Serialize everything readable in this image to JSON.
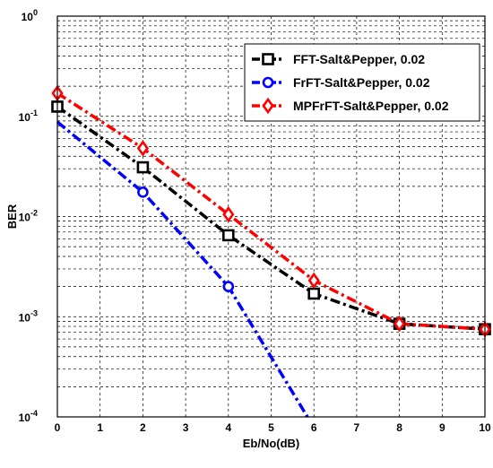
{
  "chart_data": {
    "type": "line",
    "title": "",
    "xlabel": "Eb/No(dB)",
    "ylabel": "BER",
    "xlim": [
      0,
      10
    ],
    "ylim": [
      0.0001,
      1
    ],
    "yscale": "log",
    "grid": true,
    "legend_position": "top-right",
    "x_ticks": [
      "0",
      "1",
      "2",
      "3",
      "4",
      "5",
      "6",
      "7",
      "8",
      "9",
      "10"
    ],
    "y_ticks": [
      {
        "base": "10",
        "exp": "-4"
      },
      {
        "base": "10",
        "exp": "-3"
      },
      {
        "base": "10",
        "exp": "-2"
      },
      {
        "base": "10",
        "exp": "-1"
      },
      {
        "base": "10",
        "exp": "0"
      }
    ],
    "series": [
      {
        "name": "FFT-Salt&Pepper, 0.02",
        "color": "#000000",
        "marker": "square",
        "x": [
          0,
          2,
          4,
          6,
          8,
          10
        ],
        "y": [
          0.125,
          0.031,
          0.0065,
          0.0017,
          0.00085,
          0.00075
        ]
      },
      {
        "name": "FrFT-Salt&Pepper, 0.02",
        "color": "#0000ff",
        "marker": "circle",
        "x": [
          0,
          2,
          4,
          5.85
        ],
        "y": [
          0.088,
          0.0175,
          0.002,
          0.0001
        ],
        "marker_x": [
          2,
          4
        ]
      },
      {
        "name": "MPFrFT-Salt&Pepper, 0.02",
        "color": "#ff0000",
        "marker": "diamond",
        "x": [
          0,
          2,
          4,
          6,
          8,
          10
        ],
        "y": [
          0.17,
          0.048,
          0.0105,
          0.0023,
          0.00085,
          0.00075
        ]
      }
    ]
  }
}
